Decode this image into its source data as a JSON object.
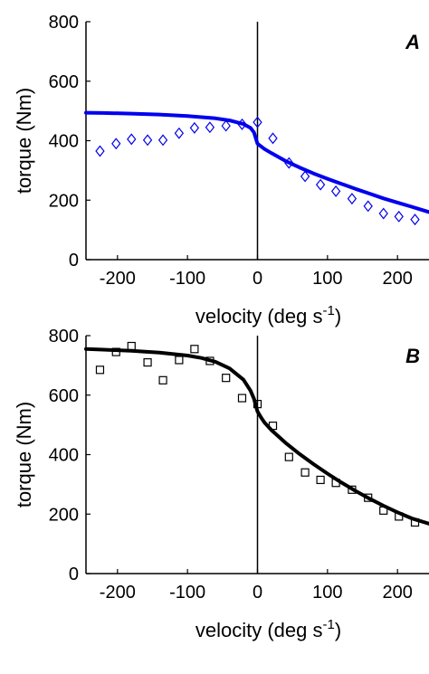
{
  "chart_data": [
    {
      "type": "line",
      "panel_label": "A",
      "xlabel": "velocity (deg s",
      "xlabel_sup": "-1",
      "xlabel_end": ")",
      "ylabel": "torque (Nm)",
      "xlim": [
        -245,
        245
      ],
      "ylim": [
        0,
        800
      ],
      "xticks": [
        -200,
        -100,
        0,
        100,
        200
      ],
      "yticks": [
        0,
        200,
        400,
        600,
        800
      ],
      "grid": false,
      "vertical_line_x": 0,
      "series": [
        {
          "kind": "line",
          "color": "#0000ee",
          "x": [
            -245,
            -220,
            -180,
            -140,
            -100,
            -60,
            -40,
            -20,
            -10,
            -5,
            0,
            10,
            20,
            40,
            60,
            80,
            100,
            120,
            140,
            160,
            180,
            200,
            220,
            245
          ],
          "y": [
            494,
            493,
            491,
            488,
            483,
            475,
            468,
            456,
            443,
            428,
            390,
            372,
            358,
            332,
            310,
            290,
            272,
            255,
            238,
            222,
            206,
            192,
            178,
            160
          ]
        },
        {
          "kind": "scatter",
          "marker": "diamond",
          "color": "#0000ee",
          "x": [
            -225,
            -202,
            -180,
            -157,
            -135,
            -112,
            -90,
            -68,
            -45,
            -22,
            0,
            22,
            45,
            68,
            90,
            112,
            135,
            158,
            180,
            202,
            225
          ],
          "y": [
            365,
            390,
            405,
            402,
            402,
            425,
            443,
            445,
            450,
            455,
            462,
            408,
            325,
            280,
            252,
            230,
            205,
            180,
            155,
            145,
            135
          ]
        }
      ]
    },
    {
      "type": "line",
      "panel_label": "B",
      "xlabel": "velocity (deg s",
      "xlabel_sup": "-1",
      "xlabel_end": ")",
      "ylabel": "torque (Nm)",
      "xlim": [
        -245,
        245
      ],
      "ylim": [
        0,
        800
      ],
      "xticks": [
        -200,
        -100,
        0,
        100,
        200
      ],
      "yticks": [
        0,
        200,
        400,
        600,
        800
      ],
      "grid": false,
      "vertical_line_x": 0,
      "series": [
        {
          "kind": "line",
          "color": "#000000",
          "x": [
            -245,
            -220,
            -180,
            -140,
            -100,
            -80,
            -60,
            -40,
            -20,
            -10,
            -5,
            0,
            5,
            10,
            20,
            40,
            60,
            80,
            100,
            120,
            140,
            160,
            180,
            200,
            220,
            245
          ],
          "y": [
            755,
            753,
            749,
            743,
            733,
            725,
            712,
            690,
            652,
            615,
            588,
            545,
            525,
            508,
            482,
            440,
            402,
            368,
            336,
            306,
            278,
            252,
            228,
            206,
            186,
            168
          ]
        },
        {
          "kind": "scatter",
          "marker": "square",
          "color": "#000000",
          "x": [
            -225,
            -202,
            -180,
            -157,
            -135,
            -112,
            -90,
            -68,
            -45,
            -22,
            0,
            22,
            45,
            68,
            90,
            112,
            135,
            158,
            180,
            202,
            225
          ],
          "y": [
            685,
            745,
            765,
            710,
            650,
            718,
            755,
            715,
            658,
            590,
            570,
            497,
            392,
            340,
            315,
            305,
            282,
            255,
            212,
            192,
            172
          ]
        }
      ]
    }
  ]
}
